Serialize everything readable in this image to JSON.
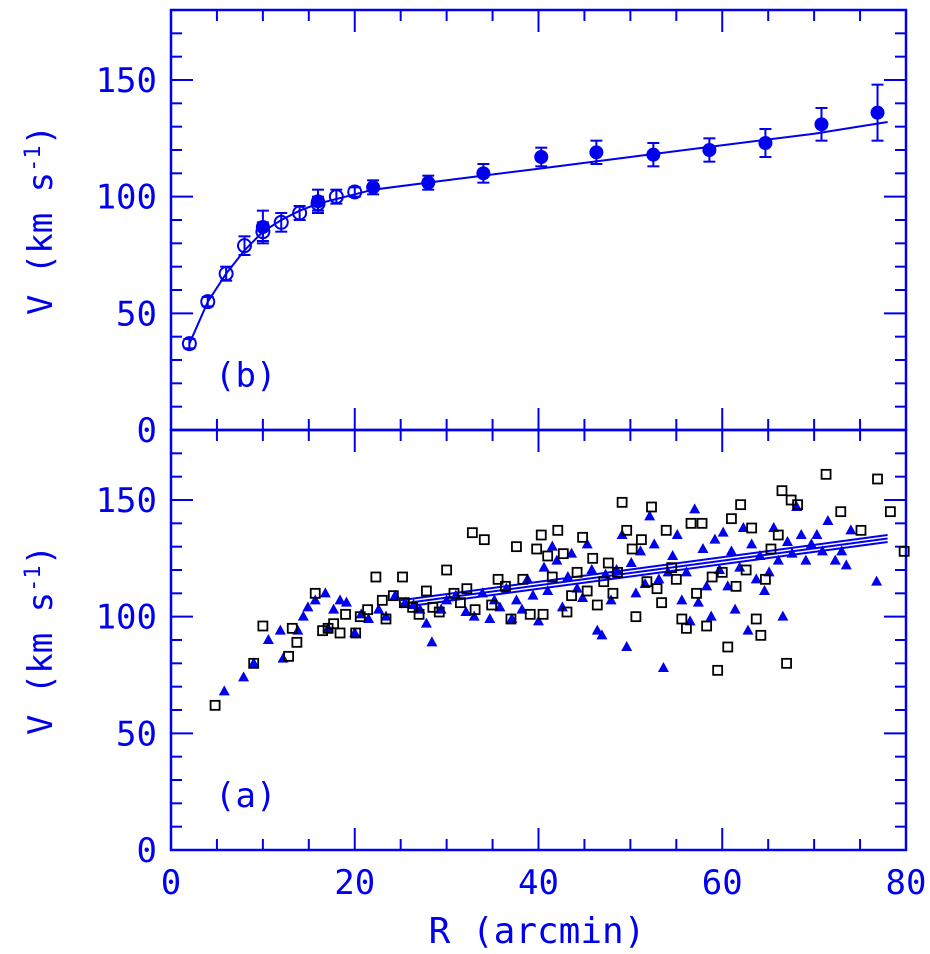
{
  "chart_data": [
    {
      "type": "scatter",
      "panel_label": "(b)",
      "xlabel": "R (arcmin)",
      "ylabel": "V (km s",
      "ylabel_sup": "-1",
      "ylabel_tail": ")",
      "xlim": [
        0,
        80
      ],
      "ylim": [
        0,
        180
      ],
      "xticks": [
        0,
        20,
        40,
        60,
        80
      ],
      "yticks": [
        0,
        50,
        100,
        150
      ],
      "colors": {
        "axes": "#0000ee",
        "points": "#0000ee"
      },
      "series": [
        {
          "marker": "open-circle",
          "points": [
            {
              "x": 2.0,
              "y": 37,
              "err": 2
            },
            {
              "x": 4.0,
              "y": 55,
              "err": 2
            },
            {
              "x": 6.0,
              "y": 67,
              "err": 3
            },
            {
              "x": 8.0,
              "y": 79,
              "err": 4
            },
            {
              "x": 10.0,
              "y": 85,
              "err": 4
            },
            {
              "x": 12.0,
              "y": 89,
              "err": 4
            },
            {
              "x": 14.0,
              "y": 93,
              "err": 3
            },
            {
              "x": 16.0,
              "y": 97,
              "err": 3
            },
            {
              "x": 18.0,
              "y": 100,
              "err": 3
            },
            {
              "x": 20.0,
              "y": 102,
              "err": 2
            }
          ]
        },
        {
          "marker": "filled-circle",
          "points": [
            {
              "x": 10.0,
              "y": 87,
              "err": 7
            },
            {
              "x": 16.0,
              "y": 98,
              "err": 5
            },
            {
              "x": 22.0,
              "y": 104,
              "err": 3
            },
            {
              "x": 28.0,
              "y": 106,
              "err": 3
            },
            {
              "x": 34.0,
              "y": 110,
              "err": 4
            },
            {
              "x": 40.3,
              "y": 117,
              "err": 4
            },
            {
              "x": 46.3,
              "y": 119,
              "err": 5
            },
            {
              "x": 52.5,
              "y": 118,
              "err": 5
            },
            {
              "x": 58.6,
              "y": 120,
              "err": 5
            },
            {
              "x": 64.7,
              "y": 123,
              "err": 6
            },
            {
              "x": 70.8,
              "y": 131,
              "err": 7
            },
            {
              "x": 76.9,
              "y": 136,
              "err": 12
            }
          ]
        }
      ],
      "fit_line": [
        [
          2,
          37
        ],
        [
          4,
          55
        ],
        [
          6,
          67
        ],
        [
          8,
          77
        ],
        [
          10,
          85
        ],
        [
          12,
          90
        ],
        [
          14,
          94
        ],
        [
          16,
          97
        ],
        [
          18,
          99
        ],
        [
          20,
          101
        ],
        [
          22,
          103
        ],
        [
          30,
          107
        ],
        [
          40,
          112
        ],
        [
          50,
          117
        ],
        [
          60,
          122
        ],
        [
          70,
          127
        ],
        [
          78,
          132
        ]
      ]
    },
    {
      "type": "scatter",
      "panel_label": "(a)",
      "xlabel": "R (arcmin)",
      "ylabel": "V (km s",
      "ylabel_sup": "-1",
      "ylabel_tail": ")",
      "xlim": [
        0,
        80
      ],
      "ylim": [
        0,
        180
      ],
      "xticks": [
        0,
        20,
        40,
        60,
        80
      ],
      "yticks": [
        0,
        50,
        100,
        150
      ],
      "colors": {
        "triangles": "#0000ee",
        "squares": "#000000"
      },
      "series": [
        {
          "marker": "filled-triangle",
          "points": [
            [
              5.8,
              68
            ],
            [
              7.9,
              74
            ],
            [
              9.0,
              80
            ],
            [
              10.6,
              90
            ],
            [
              11.9,
              94
            ],
            [
              12.2,
              82
            ],
            [
              13.8,
              94
            ],
            [
              14.4,
              100
            ],
            [
              14.9,
              104
            ],
            [
              15.7,
              107
            ],
            [
              16.8,
              110
            ],
            [
              17.1,
              95
            ],
            [
              17.7,
              103
            ],
            [
              18.4,
              107
            ],
            [
              19.1,
              106
            ],
            [
              20.0,
              93
            ],
            [
              20.7,
              101
            ],
            [
              21.5,
              99
            ],
            [
              22.6,
              103
            ],
            [
              23.4,
              100
            ],
            [
              24.4,
              109
            ],
            [
              25.5,
              106
            ],
            [
              26.4,
              105
            ],
            [
              27.1,
              103
            ],
            [
              27.8,
              97
            ],
            [
              28.4,
              89
            ],
            [
              29.4,
              103
            ],
            [
              30.0,
              107
            ],
            [
              31.0,
              109
            ],
            [
              32.1,
              102
            ],
            [
              33.0,
              100
            ],
            [
              33.9,
              110
            ],
            [
              34.7,
              99
            ],
            [
              35.2,
              107
            ],
            [
              35.8,
              104
            ],
            [
              36.5,
              112
            ],
            [
              37.1,
              99
            ],
            [
              37.6,
              107
            ],
            [
              38.2,
              103
            ],
            [
              38.8,
              116
            ],
            [
              39.4,
              109
            ],
            [
              40.0,
              98
            ],
            [
              40.6,
              121
            ],
            [
              41.0,
              111
            ],
            [
              41.5,
              130
            ],
            [
              42.0,
              124
            ],
            [
              42.6,
              104
            ],
            [
              43.2,
              117
            ],
            [
              43.6,
              127
            ],
            [
              44.2,
              112
            ],
            [
              44.8,
              108
            ],
            [
              45.3,
              131
            ],
            [
              45.8,
              120
            ],
            [
              46.4,
              94
            ],
            [
              46.9,
              92
            ],
            [
              47.3,
              118
            ],
            [
              47.9,
              107
            ],
            [
              48.5,
              120
            ],
            [
              49.1,
              135
            ],
            [
              49.6,
              87
            ],
            [
              50.1,
              123
            ],
            [
              50.6,
              110
            ],
            [
              51.1,
              128
            ],
            [
              51.6,
              114
            ],
            [
              52.1,
              143
            ],
            [
              52.6,
              131
            ],
            [
              53.1,
              116
            ],
            [
              53.6,
              78
            ],
            [
              54.1,
              119
            ],
            [
              54.6,
              126
            ],
            [
              55.1,
              135
            ],
            [
              55.6,
              107
            ],
            [
              56.1,
              119
            ],
            [
              56.5,
              98
            ],
            [
              57.0,
              146
            ],
            [
              57.4,
              106
            ],
            [
              57.9,
              129
            ],
            [
              58.3,
              113
            ],
            [
              58.8,
              100
            ],
            [
              59.2,
              133
            ],
            [
              59.7,
              120
            ],
            [
              60.1,
              136
            ],
            [
              60.6,
              113
            ],
            [
              61.0,
              128
            ],
            [
              61.4,
              103
            ],
            [
              61.9,
              121
            ],
            [
              62.3,
              138
            ],
            [
              62.8,
              94
            ],
            [
              63.2,
              131
            ],
            [
              63.7,
              116
            ],
            [
              64.1,
              126
            ],
            [
              64.6,
              111
            ],
            [
              65.1,
              119
            ],
            [
              65.6,
              138
            ],
            [
              66.1,
              124
            ],
            [
              66.6,
              100
            ],
            [
              67.1,
              132
            ],
            [
              67.6,
              127
            ],
            [
              68.1,
              147
            ],
            [
              68.6,
              135
            ],
            [
              69.1,
              124
            ],
            [
              69.7,
              131
            ],
            [
              70.3,
              135
            ],
            [
              70.9,
              128
            ],
            [
              71.5,
              141
            ],
            [
              72.3,
              124
            ],
            [
              73.0,
              128
            ],
            [
              73.5,
              122
            ],
            [
              74.0,
              137
            ],
            [
              76.8,
              115
            ]
          ]
        },
        {
          "marker": "open-square",
          "points": [
            [
              4.8,
              62
            ],
            [
              9.0,
              80
            ],
            [
              10.0,
              96
            ],
            [
              12.8,
              83
            ],
            [
              13.2,
              95
            ],
            [
              13.7,
              89
            ],
            [
              15.7,
              110
            ],
            [
              16.5,
              94
            ],
            [
              17.1,
              95
            ],
            [
              17.7,
              97
            ],
            [
              18.4,
              93
            ],
            [
              19.0,
              101
            ],
            [
              20.1,
              93
            ],
            [
              20.6,
              100
            ],
            [
              21.4,
              103
            ],
            [
              22.3,
              117
            ],
            [
              23.0,
              107
            ],
            [
              23.4,
              99
            ],
            [
              24.2,
              109
            ],
            [
              25.2,
              117
            ],
            [
              25.4,
              106
            ],
            [
              26.3,
              104
            ],
            [
              27.0,
              101
            ],
            [
              27.8,
              111
            ],
            [
              28.5,
              104
            ],
            [
              29.2,
              102
            ],
            [
              30.0,
              120
            ],
            [
              30.8,
              110
            ],
            [
              31.5,
              106
            ],
            [
              32.2,
              112
            ],
            [
              32.8,
              136
            ],
            [
              33.1,
              103
            ],
            [
              34.1,
              133
            ],
            [
              34.9,
              105
            ],
            [
              35.6,
              116
            ],
            [
              36.4,
              113
            ],
            [
              37.0,
              99
            ],
            [
              37.6,
              130
            ],
            [
              38.3,
              116
            ],
            [
              39.1,
              101
            ],
            [
              39.8,
              129
            ],
            [
              40.3,
              135
            ],
            [
              40.5,
              101
            ],
            [
              41.0,
              126
            ],
            [
              41.5,
              117
            ],
            [
              42.1,
              137
            ],
            [
              42.7,
              127
            ],
            [
              43.1,
              102
            ],
            [
              43.6,
              109
            ],
            [
              44.2,
              119
            ],
            [
              44.8,
              134
            ],
            [
              45.3,
              111
            ],
            [
              45.9,
              125
            ],
            [
              46.4,
              105
            ],
            [
              47.1,
              115
            ],
            [
              47.6,
              123
            ],
            [
              48.1,
              110
            ],
            [
              48.6,
              119
            ],
            [
              49.1,
              149
            ],
            [
              49.6,
              137
            ],
            [
              50.2,
              129
            ],
            [
              50.6,
              100
            ],
            [
              51.2,
              133
            ],
            [
              51.8,
              115
            ],
            [
              52.3,
              147
            ],
            [
              52.9,
              112
            ],
            [
              53.4,
              106
            ],
            [
              53.9,
              137
            ],
            [
              54.5,
              121
            ],
            [
              55.0,
              116
            ],
            [
              55.6,
              99
            ],
            [
              56.1,
              95
            ],
            [
              56.6,
              140
            ],
            [
              57.2,
              110
            ],
            [
              57.8,
              140
            ],
            [
              58.3,
              96
            ],
            [
              58.9,
              117
            ],
            [
              59.5,
              77
            ],
            [
              60.0,
              119
            ],
            [
              60.6,
              87
            ],
            [
              61.0,
              142
            ],
            [
              61.5,
              113
            ],
            [
              62.0,
              148
            ],
            [
              62.6,
              120
            ],
            [
              63.2,
              138
            ],
            [
              63.7,
              99
            ],
            [
              64.2,
              92
            ],
            [
              64.7,
              116
            ],
            [
              65.3,
              129
            ],
            [
              66.1,
              135
            ],
            [
              66.5,
              154
            ],
            [
              67.0,
              80
            ],
            [
              67.5,
              150
            ],
            [
              68.2,
              148
            ],
            [
              71.3,
              161
            ],
            [
              72.9,
              145
            ],
            [
              75.1,
              137
            ],
            [
              76.9,
              159
            ],
            [
              78.3,
              145
            ],
            [
              79.8,
              128
            ]
          ]
        }
      ],
      "fit_lines": [
        [
          [
            25,
            107
          ],
          [
            78,
            135
          ]
        ],
        [
          [
            25,
            105.5
          ],
          [
            78,
            133.5
          ]
        ],
        [
          [
            25,
            104
          ],
          [
            78,
            132
          ]
        ]
      ]
    }
  ]
}
